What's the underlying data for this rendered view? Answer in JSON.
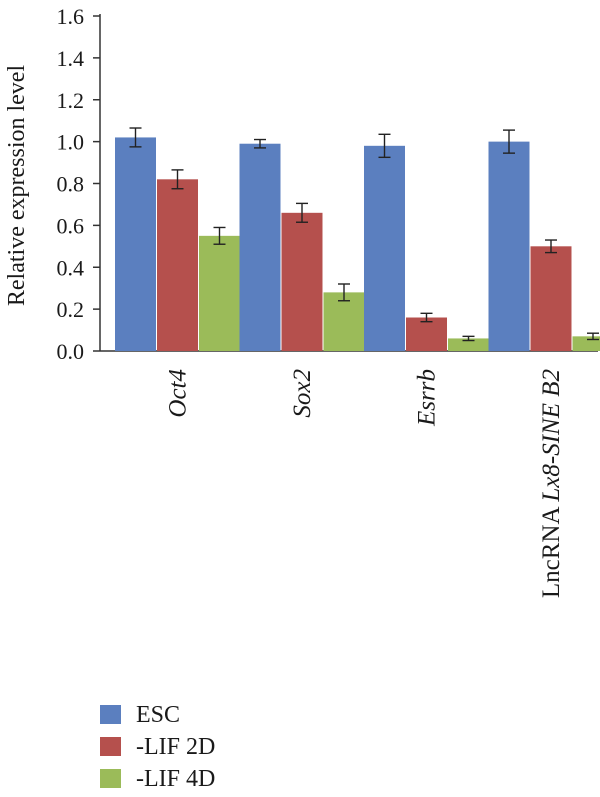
{
  "chart_data": {
    "type": "bar",
    "ylabel": "Relative expression level",
    "ylim": [
      0,
      1.6
    ],
    "yticks": [
      "0.0",
      "0.2",
      "0.4",
      "0.6",
      "0.8",
      "1.0",
      "1.2",
      "1.4",
      "1.6"
    ],
    "categories": [
      {
        "plain": "Oct4",
        "italic": "Oct4",
        "prefix": "",
        "suffix": ""
      },
      {
        "plain": "Sox2",
        "italic": "Sox2",
        "prefix": "",
        "suffix": ""
      },
      {
        "plain": "Esrrb",
        "italic": "Esrrb",
        "prefix": "",
        "suffix": ""
      },
      {
        "plain": "LncRNA Lx8-SINE B2",
        "italic": "Lx8-SINE B2",
        "prefix": "LncRNA ",
        "suffix": ""
      }
    ],
    "series": [
      {
        "name": "ESC",
        "color": "#5b7fbf",
        "values": [
          1.02,
          0.99,
          0.98,
          1.0
        ],
        "errors": [
          0.045,
          0.02,
          0.055,
          0.055
        ]
      },
      {
        "name": "-LIF 2D",
        "color": "#b5504d",
        "values": [
          0.82,
          0.66,
          0.16,
          0.5
        ],
        "errors": [
          0.045,
          0.045,
          0.02,
          0.03
        ]
      },
      {
        "name": "-LIF 4D",
        "color": "#9bbb59",
        "values": [
          0.55,
          0.28,
          0.06,
          0.07
        ],
        "errors": [
          0.04,
          0.04,
          0.01,
          0.015
        ]
      }
    ],
    "grid": false,
    "legend_position": "bottom-left"
  }
}
